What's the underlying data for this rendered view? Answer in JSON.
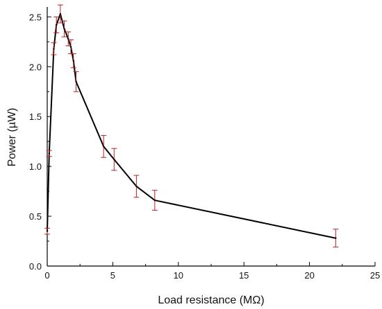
{
  "chart_data": {
    "type": "line",
    "title": "",
    "xlabel": "Load resistance (MΩ)",
    "ylabel": "Power (µW)",
    "xlim": [
      0,
      25
    ],
    "ylim": [
      0,
      2.6
    ],
    "x_ticks": [
      0,
      5,
      10,
      15,
      20,
      25
    ],
    "y_ticks": [
      0.0,
      0.5,
      1.0,
      1.5,
      2.0,
      2.5
    ],
    "x_tick_labels": [
      "0",
      "5",
      "10",
      "15",
      "20",
      "25"
    ],
    "y_tick_labels": [
      "0.0",
      "0.5",
      "1.0",
      "1.5",
      "2.0",
      "2.5"
    ],
    "grid": false,
    "legend": "none",
    "line_color": "#000000",
    "errorbar_color": "#b22222",
    "series": [
      {
        "x": [
          0.0,
          0.15,
          0.5,
          0.7,
          1.0,
          1.3,
          1.6,
          1.8,
          2.0,
          2.2,
          4.3,
          5.1,
          6.8,
          8.2,
          22.0
        ],
        "y": [
          0.35,
          1.13,
          2.18,
          2.42,
          2.53,
          2.38,
          2.28,
          2.2,
          2.06,
          1.85,
          1.2,
          1.07,
          0.8,
          0.66,
          0.28
        ],
        "error": [
          0.03,
          0.03,
          0.06,
          0.08,
          0.09,
          0.08,
          0.07,
          0.07,
          0.07,
          0.1,
          0.11,
          0.11,
          0.11,
          0.1,
          0.09
        ]
      }
    ]
  }
}
